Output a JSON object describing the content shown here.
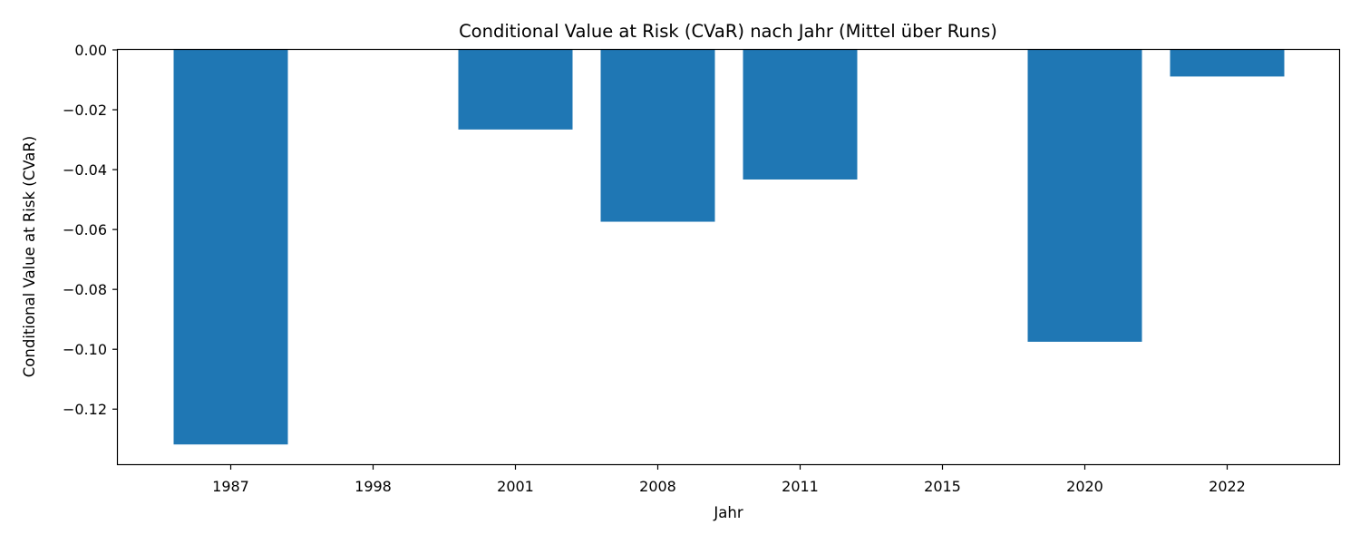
{
  "chart_data": {
    "type": "bar",
    "title": "Conditional Value at Risk (CVaR) nach Jahr (Mittel über Runs)",
    "xlabel": "Jahr",
    "ylabel": "Conditional Value at Risk (CVaR)",
    "categories": [
      "1987",
      "1998",
      "2001",
      "2008",
      "2011",
      "2015",
      "2020",
      "2022"
    ],
    "values": [
      -0.1318,
      0.0,
      -0.0266,
      -0.0574,
      -0.0433,
      0.0,
      -0.0975,
      -0.0089
    ],
    "ylim": [
      -0.1384,
      0.0
    ],
    "yticks": [
      0.0,
      -0.02,
      -0.04,
      -0.06,
      -0.08,
      -0.1,
      -0.12
    ],
    "ytick_labels": [
      "0.00",
      "−0.02",
      "−0.04",
      "−0.06",
      "−0.08",
      "−0.10",
      "−0.12"
    ],
    "bar_color": "#1f77b4",
    "grid": false,
    "legend": "none"
  }
}
